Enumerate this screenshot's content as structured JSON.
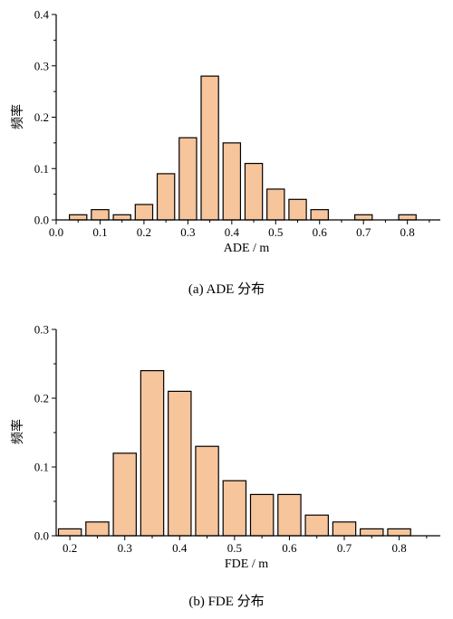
{
  "chart_data": [
    {
      "type": "bar",
      "caption": "(a)  ADE 分布",
      "xlabel": "ADE / m",
      "ylabel": "频率",
      "xlim": [
        0.0,
        0.875
      ],
      "ylim": [
        0.0,
        0.4
      ],
      "xticks": [
        "0.0",
        "0.1",
        "0.2",
        "0.3",
        "0.4",
        "0.5",
        "0.6",
        "0.7",
        "0.8"
      ],
      "yticks": [
        "0.0",
        "0.1",
        "0.2",
        "0.3",
        "0.4"
      ],
      "bin_width": 0.05,
      "bin_centers": [
        0.05,
        0.1,
        0.15,
        0.2,
        0.25,
        0.3,
        0.35,
        0.4,
        0.45,
        0.5,
        0.55,
        0.6,
        0.7,
        0.8
      ],
      "values": [
        0.01,
        0.02,
        0.01,
        0.03,
        0.09,
        0.16,
        0.28,
        0.15,
        0.11,
        0.06,
        0.04,
        0.02,
        0.01,
        0.01
      ]
    },
    {
      "type": "bar",
      "caption": "(b)  FDE 分布",
      "xlabel": "FDE / m",
      "ylabel": "频率",
      "xlim": [
        0.175,
        0.875
      ],
      "ylim": [
        0.0,
        0.3
      ],
      "xticks": [
        "0.2",
        "0.3",
        "0.4",
        "0.5",
        "0.6",
        "0.7",
        "0.8"
      ],
      "yticks": [
        "0.0",
        "0.1",
        "0.2",
        "0.3"
      ],
      "bin_width": 0.05,
      "bin_centers": [
        0.2,
        0.25,
        0.3,
        0.35,
        0.4,
        0.45,
        0.5,
        0.55,
        0.6,
        0.65,
        0.7,
        0.75,
        0.8
      ],
      "values": [
        0.01,
        0.02,
        0.12,
        0.24,
        0.21,
        0.13,
        0.08,
        0.06,
        0.06,
        0.03,
        0.02,
        0.01,
        0.01
      ]
    }
  ]
}
